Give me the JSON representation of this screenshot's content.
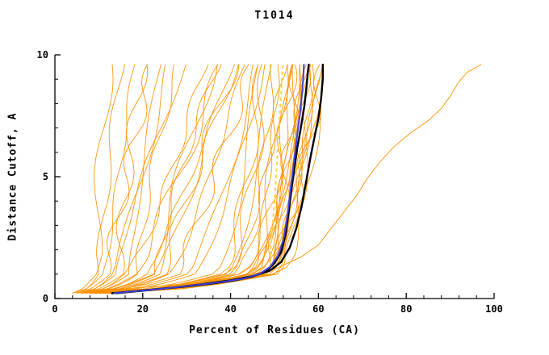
{
  "chart_data": {
    "type": "line",
    "title": "T1014",
    "xlabel": "Percent of Residues (CA)",
    "ylabel": "Distance Cutoff, A",
    "xlim": [
      0,
      100
    ],
    "ylim": [
      0,
      10
    ],
    "x_major_ticks": [
      0,
      20,
      40,
      60,
      80,
      100
    ],
    "x_minor_step": 4,
    "y_major_ticks": [
      0,
      5,
      10
    ],
    "y_minor_step": 1,
    "grid": false,
    "legend": "none",
    "axis_color": "#000000",
    "ensemble": {
      "name": "predicted-models",
      "color": "#FF9100",
      "width": 0.9,
      "param_format": [
        "x_at_bottom",
        "x_at_knee_y1",
        "x_at_top_y9.6",
        "rise_shape_exponent"
      ],
      "curves": [
        [
          4,
          9,
          12,
          1.0
        ],
        [
          5,
          10,
          15,
          1.2
        ],
        [
          4,
          11,
          18,
          0.9
        ],
        [
          5,
          12,
          22,
          1.1
        ],
        [
          6,
          13,
          26,
          0.85
        ],
        [
          5,
          14,
          30,
          1.3
        ],
        [
          6,
          15,
          20,
          1.6
        ],
        [
          7,
          16,
          34,
          0.75
        ],
        [
          6,
          17,
          24,
          1.25
        ],
        [
          7,
          18,
          38,
          0.9
        ],
        [
          7,
          19,
          28,
          1.45
        ],
        [
          8,
          21,
          42,
          1.0
        ],
        [
          6,
          22,
          36,
          1.0
        ],
        [
          7,
          24,
          40,
          0.9
        ],
        [
          8,
          26,
          43,
          0.8
        ],
        [
          6,
          28,
          45,
          0.95
        ],
        [
          7,
          30,
          46,
          0.7
        ],
        [
          8,
          32,
          48,
          0.8
        ],
        [
          7,
          25,
          41,
          1.15
        ],
        [
          6,
          23,
          37,
          1.25
        ],
        [
          8,
          36,
          46,
          0.5
        ],
        [
          9,
          38,
          48,
          0.45
        ],
        [
          10,
          40,
          50,
          0.5
        ],
        [
          8,
          42,
          51,
          0.4
        ],
        [
          11,
          44,
          52,
          0.5
        ],
        [
          9,
          45,
          53,
          0.35
        ],
        [
          12,
          46,
          54,
          0.45
        ],
        [
          10,
          47,
          55,
          0.5
        ],
        [
          13,
          48,
          55,
          0.4
        ],
        [
          11,
          49,
          56,
          0.45
        ],
        [
          9,
          50,
          57,
          0.5
        ],
        [
          12,
          44,
          57,
          0.6
        ],
        [
          10,
          42,
          58,
          0.55
        ],
        [
          8,
          46,
          58,
          0.5
        ],
        [
          13,
          47,
          59,
          0.45
        ],
        [
          11,
          48,
          59,
          0.5
        ],
        [
          9,
          49,
          60,
          0.4
        ],
        [
          12,
          50,
          60,
          0.5
        ],
        [
          10,
          45,
          61,
          0.55
        ],
        [
          13,
          46,
          61,
          0.5
        ],
        [
          11,
          47,
          62,
          0.45
        ],
        [
          8,
          44,
          56,
          0.5
        ],
        [
          12,
          43,
          54,
          0.5
        ],
        [
          10,
          41,
          52,
          0.6
        ],
        [
          9,
          39,
          49,
          0.55
        ],
        [
          11,
          37,
          47,
          0.5
        ]
      ]
    },
    "outlier": {
      "name": "outlier-model",
      "color": "#FF9100",
      "width": 0.9,
      "points": [
        [
          5,
          0.25
        ],
        [
          20,
          0.45
        ],
        [
          32,
          0.65
        ],
        [
          42,
          0.9
        ],
        [
          50,
          1.2
        ],
        [
          56,
          1.7
        ],
        [
          60,
          2.2
        ],
        [
          63,
          2.9
        ],
        [
          66,
          3.6
        ],
        [
          69,
          4.3
        ],
        [
          71,
          4.9
        ],
        [
          74,
          5.6
        ],
        [
          77,
          6.2
        ],
        [
          81,
          6.8
        ],
        [
          85,
          7.3
        ],
        [
          88,
          7.8
        ],
        [
          90,
          8.3
        ],
        [
          92,
          8.9
        ],
        [
          94,
          9.3
        ],
        [
          97,
          9.6
        ]
      ]
    },
    "dashed_reference": {
      "name": "reference-line",
      "color": "#FFD54F",
      "width": 2.2,
      "dash": [
        2.5,
        5.5
      ],
      "points": [
        [
          49,
          1.8
        ],
        [
          49.6,
          3.0
        ],
        [
          50.1,
          4.2
        ],
        [
          50.5,
          5.4
        ],
        [
          50.9,
          6.6
        ],
        [
          51.3,
          7.8
        ],
        [
          51.7,
          9.0
        ],
        [
          51.9,
          9.55
        ]
      ]
    },
    "highlights": [
      {
        "name": "best-model-a",
        "color": "#000000",
        "width": 2.4,
        "points": [
          [
            13,
            0.22
          ],
          [
            18,
            0.3
          ],
          [
            24,
            0.4
          ],
          [
            30,
            0.5
          ],
          [
            36,
            0.62
          ],
          [
            41,
            0.75
          ],
          [
            45,
            0.9
          ],
          [
            48,
            1.1
          ],
          [
            50,
            1.45
          ],
          [
            51.5,
            1.9
          ],
          [
            52.5,
            2.6
          ],
          [
            53.2,
            3.5
          ],
          [
            53.8,
            4.4
          ],
          [
            54.5,
            5.3
          ],
          [
            55.2,
            6.2
          ],
          [
            56,
            7.0
          ],
          [
            56.8,
            7.9
          ],
          [
            57.3,
            8.7
          ],
          [
            57.6,
            9.3
          ],
          [
            57.8,
            9.6
          ]
        ]
      },
      {
        "name": "best-model-b",
        "color": "#000000",
        "width": 2.4,
        "points": [
          [
            14,
            0.22
          ],
          [
            20,
            0.32
          ],
          [
            27,
            0.45
          ],
          [
            34,
            0.6
          ],
          [
            40,
            0.75
          ],
          [
            45,
            0.92
          ],
          [
            49,
            1.15
          ],
          [
            51.5,
            1.5
          ],
          [
            53.5,
            2.1
          ],
          [
            55,
            2.9
          ],
          [
            56.2,
            3.8
          ],
          [
            57.2,
            4.8
          ],
          [
            58.2,
            5.8
          ],
          [
            59.2,
            6.7
          ],
          [
            60,
            7.4
          ],
          [
            60.6,
            8.2
          ],
          [
            61,
            9.0
          ],
          [
            61,
            9.6
          ]
        ]
      },
      {
        "name": "selected-model",
        "color": "#4040D8",
        "width": 2.0,
        "points": [
          [
            13.5,
            0.22
          ],
          [
            19,
            0.31
          ],
          [
            25.5,
            0.42
          ],
          [
            32,
            0.55
          ],
          [
            38,
            0.68
          ],
          [
            43,
            0.82
          ],
          [
            46.5,
            1.0
          ],
          [
            49,
            1.3
          ],
          [
            50.8,
            1.75
          ],
          [
            52,
            2.4
          ],
          [
            52.8,
            3.2
          ],
          [
            53.4,
            4.1
          ],
          [
            54,
            5.0
          ],
          [
            54.7,
            6.0
          ],
          [
            55.3,
            6.9
          ],
          [
            55.9,
            7.7
          ],
          [
            56.3,
            8.5
          ],
          [
            56.6,
            9.2
          ],
          [
            56.7,
            9.6
          ]
        ]
      }
    ]
  }
}
